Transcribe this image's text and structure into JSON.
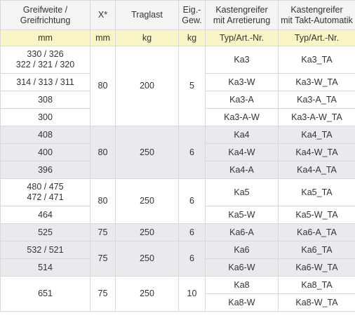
{
  "header": {
    "c1": "Greifweite / Greifrichtung",
    "c2": "X*",
    "c3": "Traglast",
    "c4": "Eig.-Gew.",
    "c5": "Kastengreifer mit Arretierung",
    "c6": "Kastengreifer mit Takt-Automatik"
  },
  "units": {
    "c1": "mm",
    "c2": "mm",
    "c3": "kg",
    "c4": "kg",
    "c5": "Typ/Art.-Nr.",
    "c6": "Typ/Art.-Nr."
  },
  "groups": [
    {
      "x": "80",
      "traglast": "200",
      "gewicht": "5",
      "rows": [
        {
          "weite": "330 / 326 322 / 321 / 320",
          "arr": "Ka3",
          "takt": "Ka3_TA"
        },
        {
          "weite": "314 / 313 / 311",
          "arr": "Ka3-W",
          "takt": "Ka3-W_TA"
        },
        {
          "weite": "308",
          "arr": "Ka3-A",
          "takt": "Ka3-A_TA"
        },
        {
          "weite": "300",
          "arr": "Ka3-A-W",
          "takt": "Ka3-A-W_TA"
        }
      ]
    },
    {
      "x": "80",
      "traglast": "250",
      "gewicht": "6",
      "rows": [
        {
          "weite": "408",
          "arr": "Ka4",
          "takt": "Ka4_TA"
        },
        {
          "weite": "400",
          "arr": "Ka4-W",
          "takt": "Ka4-W_TA"
        },
        {
          "weite": "396",
          "arr": "Ka4-A",
          "takt": "Ka4-A_TA"
        }
      ]
    },
    {
      "x": "80",
      "traglast": "250",
      "gewicht": "6",
      "rows": [
        {
          "weite": "480 / 475 472 / 471",
          "arr": "Ka5",
          "takt": "Ka5_TA"
        },
        {
          "weite": "464",
          "arr": "Ka5-W",
          "takt": "Ka5-W_TA"
        }
      ]
    },
    {
      "x": "75",
      "traglast": "250",
      "gewicht": "6",
      "rows": [
        {
          "weite": "525",
          "arr": "Ka6-A",
          "takt": "Ka6-A_TA"
        }
      ]
    },
    {
      "x": "75",
      "traglast": "250",
      "gewicht": "6",
      "rows": [
        {
          "weite": "532 / 521",
          "arr": "Ka6",
          "takt": "Ka6_TA"
        },
        {
          "weite": "514",
          "arr": "Ka6-W",
          "takt": "Ka6-W_TA"
        }
      ]
    },
    {
      "x": "75",
      "traglast": "250",
      "gewicht": "10",
      "rows": [
        {
          "weite": "651",
          "arr": "Ka8",
          "takt": "Ka8_TA"
        },
        {
          "weite": "",
          "arr": "Ka8-W",
          "takt": "Ka8-W_TA"
        }
      ]
    }
  ]
}
